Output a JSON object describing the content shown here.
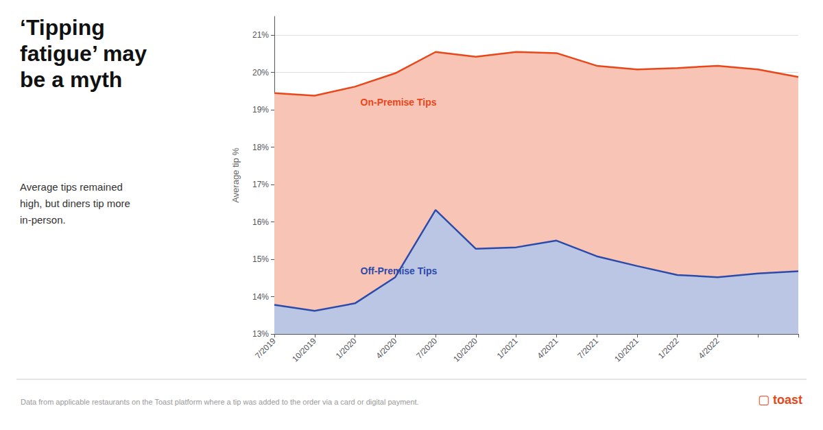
{
  "chart_data": {
    "type": "area",
    "title": "‘Tipping\nfatigue’ may\nbe a myth",
    "subtitle": "Average tips remained\nhigh, but diners tip more\nin-person.",
    "footnote": "Data from applicable restaurants on the Toast platform where a tip was added to the order via a card or digital payment.",
    "logo": "▢ toast",
    "ylabel": "Average tip %",
    "categories": [
      "7/2019",
      "10/2019",
      "1/2020",
      "4/2020",
      "7/2020",
      "10/2020",
      "1/2021",
      "4/2021",
      "7/2021",
      "10/2021",
      "1/2022",
      "4/2022",
      null,
      null
    ],
    "series": [
      {
        "name": "On-Premise Tips",
        "color": "#E8471A",
        "values": [
          19.45,
          19.38,
          19.62,
          19.98,
          20.55,
          20.42,
          20.55,
          20.52,
          20.18,
          20.08,
          20.12,
          20.18,
          20.08,
          19.88
        ]
      },
      {
        "name": "Off-Premise Tips",
        "color": "#2B4BAA",
        "values": [
          13.78,
          13.62,
          13.82,
          14.52,
          16.32,
          15.28,
          15.32,
          15.5,
          15.08,
          14.82,
          14.58,
          14.52,
          14.62,
          14.68
        ]
      }
    ],
    "ylim": [
      13,
      21.5
    ],
    "yticks": [
      {
        "value": 13,
        "label": "13%"
      },
      {
        "value": 14,
        "label": "14%"
      },
      {
        "value": 15,
        "label": "15%"
      },
      {
        "value": 16,
        "label": "16%"
      },
      {
        "value": 17,
        "label": "17%"
      },
      {
        "value": 18,
        "label": "18%"
      },
      {
        "value": 19,
        "label": "19%"
      },
      {
        "value": 20,
        "label": "20%"
      },
      {
        "value": 21,
        "label": "21%"
      }
    ],
    "grid": true
  }
}
